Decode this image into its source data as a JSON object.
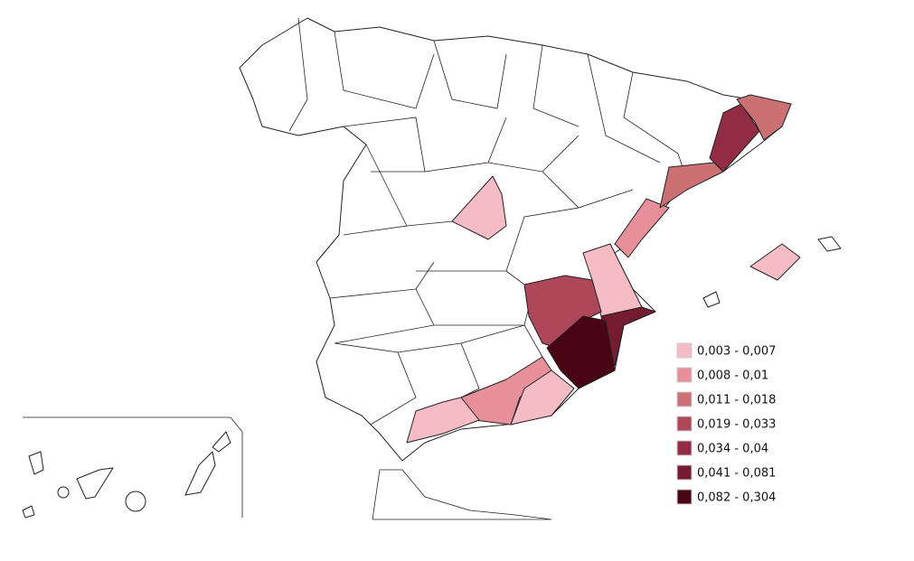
{
  "legend": {
    "items": [
      {
        "label": "0,003 - 0,007",
        "color": "#f5bcc6"
      },
      {
        "label": "0,008 - 0,01",
        "color": "#e8909a"
      },
      {
        "label": "0,011 - 0,018",
        "color": "#cb7173"
      },
      {
        "label": "0,019 - 0,033",
        "color": "#ae4759"
      },
      {
        "label": "0,034 - 0,04",
        "color": "#922c44"
      },
      {
        "label": "0,041 - 0,081",
        "color": "#751c31"
      },
      {
        "label": "0,082 - 0,304",
        "color": "#4a0514"
      }
    ]
  }
}
